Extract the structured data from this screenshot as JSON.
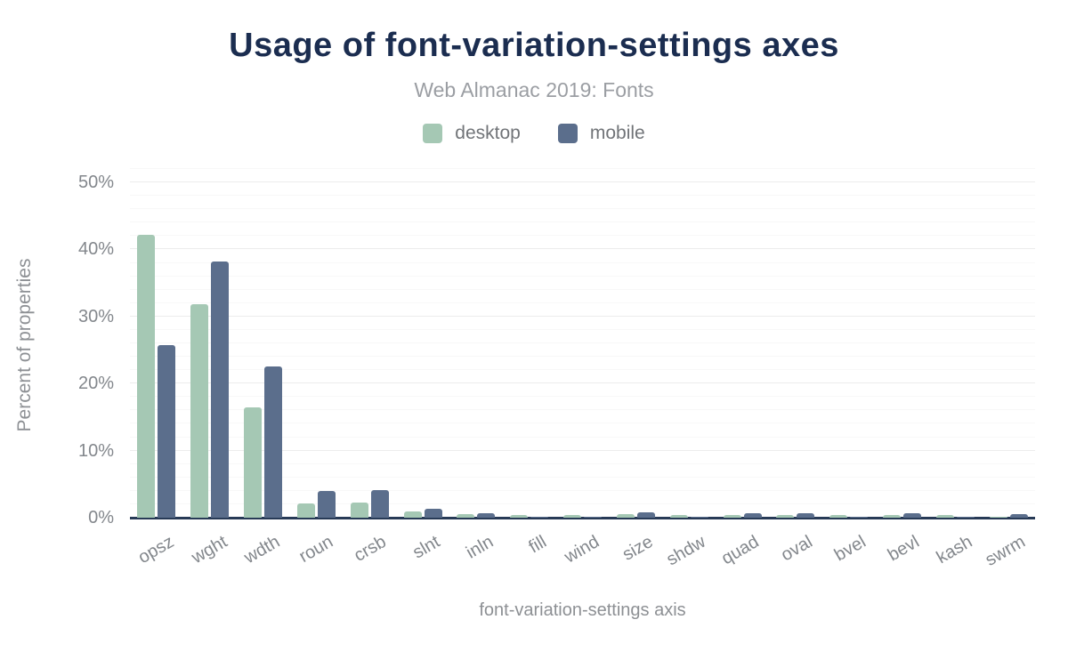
{
  "header": {
    "title": "Usage of font-variation-settings axes",
    "subtitle": "Web Almanac 2019: Fonts"
  },
  "legend": {
    "items": [
      {
        "label": "desktop",
        "color": "#a5c8b4"
      },
      {
        "label": "mobile",
        "color": "#5b6e8c"
      }
    ]
  },
  "chart_data": {
    "type": "bar",
    "title": "Usage of font-variation-settings axes",
    "subtitle": "Web Almanac 2019: Fonts",
    "xlabel": "font-variation-settings axis",
    "ylabel": "Percent of properties",
    "categories": [
      "opsz",
      "wght",
      "wdth",
      "roun",
      "crsb",
      "slnt",
      "inln",
      "fill",
      "wind",
      "size",
      "shdw",
      "quad",
      "oval",
      "bvel",
      "bevl",
      "kash",
      "swrm"
    ],
    "series": [
      {
        "name": "desktop",
        "color": "#a5c8b4",
        "values": [
          42.2,
          31.9,
          16.4,
          2.1,
          2.2,
          0.9,
          0.5,
          0.45,
          0.45,
          0.5,
          0.45,
          0.4,
          0.4,
          0.4,
          0.4,
          0.4,
          0.15
        ]
      },
      {
        "name": "mobile",
        "color": "#5b6e8c",
        "values": [
          25.8,
          38.2,
          22.6,
          4.0,
          4.1,
          1.3,
          0.7,
          0.1,
          0.1,
          0.85,
          0.1,
          0.65,
          0.65,
          0.1,
          0.65,
          0.1,
          0.5
        ]
      }
    ],
    "ylim": [
      0,
      52
    ],
    "yticks": [
      0,
      10,
      20,
      30,
      40,
      50
    ],
    "ytick_suffix": "%",
    "minor_tick_step": 2,
    "grid": true,
    "legend_position": "top"
  },
  "colors": {
    "title": "#1b2d50",
    "subtitle": "#9b9ea3",
    "legend_text": "#717478",
    "tick_text": "#83878c",
    "axis_text": "#8d9094",
    "axis_line": "#273a56",
    "grid_major": "#ececec",
    "grid_minor": "#f8f8f8",
    "background": "#ffffff"
  }
}
